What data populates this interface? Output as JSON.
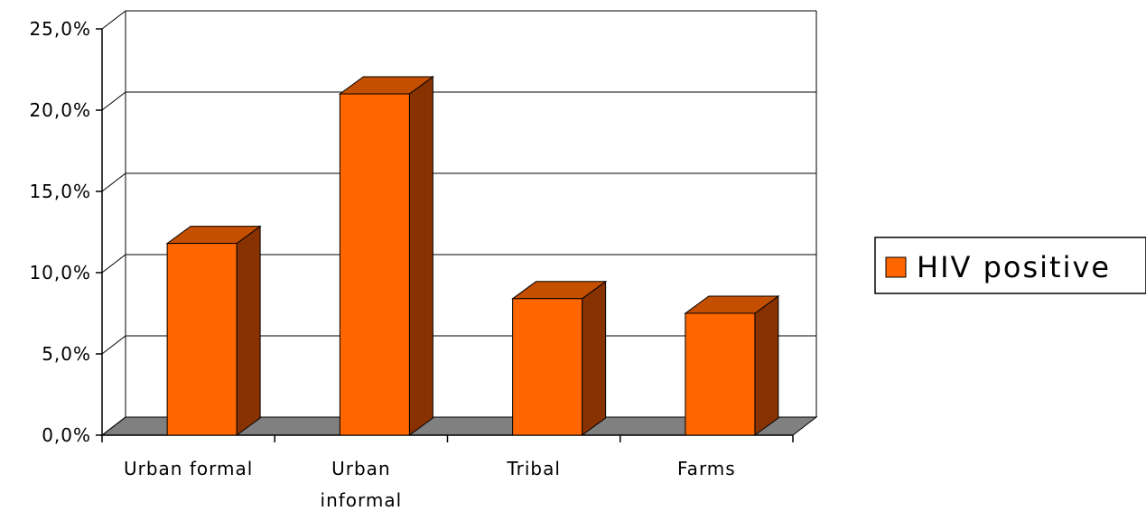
{
  "chart_data": {
    "type": "bar",
    "title": "",
    "xlabel": "",
    "ylabel": "",
    "categories": [
      [
        "Urban formal"
      ],
      [
        "Urban",
        "informal"
      ],
      [
        "Tribal"
      ],
      [
        "Farms"
      ]
    ],
    "series": [
      {
        "name": "HIV positive",
        "values": [
          11.8,
          21.0,
          8.4,
          7.5
        ]
      }
    ],
    "ylim": [
      0,
      25
    ],
    "y_ticks": [
      "0,0%",
      "5,0%",
      "10,0%",
      "15,0%",
      "20,0%",
      "25,0%"
    ],
    "y_tick_values": [
      0,
      5,
      10,
      15,
      20,
      25
    ],
    "grid": true,
    "style": "3d-column",
    "legend_position": "right",
    "colors": {
      "bar_front": "#ff6600",
      "bar_top": "#c54f00",
      "bar_side": "#873200",
      "floor": "#808080",
      "grid": "#000000"
    }
  }
}
